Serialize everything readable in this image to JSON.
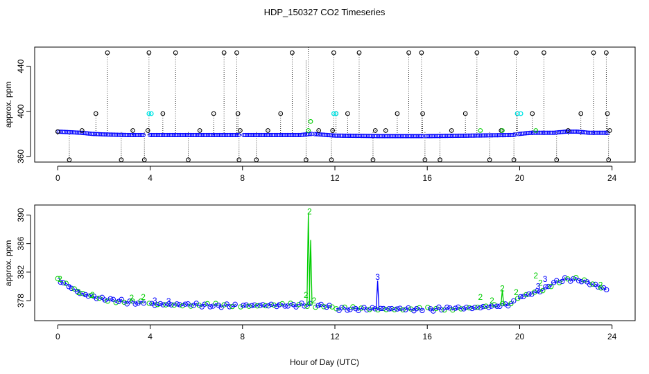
{
  "chart_data": {
    "title": "HDP_150327  CO2 Timeseries",
    "xlabel": "Hour of Day (UTC)",
    "x_ticks": [
      0,
      4,
      8,
      12,
      16,
      20,
      24
    ],
    "panels": [
      {
        "id": "top",
        "type": "scatter",
        "ylabel": "approx. ppm",
        "xlim": [
          -1,
          25
        ],
        "ylim": [
          355,
          457
        ],
        "y_ticks": [
          360,
          400,
          440
        ],
        "x_ticks": [
          0,
          4,
          8,
          12,
          16,
          20,
          24
        ],
        "baseline": [
          [
            0,
            382
          ],
          [
            0.5,
            381.5
          ],
          [
            1,
            381
          ],
          [
            1.5,
            380
          ],
          [
            2,
            379.5
          ],
          [
            3,
            379
          ],
          [
            3.9,
            379
          ],
          [
            4,
            379
          ],
          [
            6,
            379
          ],
          [
            8,
            379
          ],
          [
            10,
            379
          ],
          [
            10.5,
            379
          ],
          [
            11,
            380
          ],
          [
            12,
            378.5
          ],
          [
            14,
            378
          ],
          [
            16,
            378
          ],
          [
            18,
            378.5
          ],
          [
            19.7,
            379
          ],
          [
            20,
            380
          ],
          [
            20.5,
            381
          ],
          [
            21,
            381
          ],
          [
            21.5,
            381
          ],
          [
            22,
            382
          ],
          [
            22.5,
            382
          ],
          [
            23,
            381
          ],
          [
            23.8,
            381
          ]
        ],
        "gaps": [
          [
            3.75,
            3.95
          ],
          [
            7.9,
            8.0
          ],
          [
            11.0,
            11.1
          ],
          [
            15.85,
            15.95
          ],
          [
            19.85,
            19.95
          ]
        ],
        "outlier_marks": [
          {
            "x": 0,
            "y": 382,
            "top": 382
          },
          {
            "x": 0.5,
            "y": 357,
            "top": 382
          },
          {
            "x": 1.05,
            "y": 383,
            "top": 383
          },
          {
            "x": 1.65,
            "y": 398,
            "top": 398
          },
          {
            "x": 2.15,
            "y": 452,
            "top": 452
          },
          {
            "x": 2.75,
            "y": 357,
            "top": 382
          },
          {
            "x": 3.25,
            "y": 383,
            "top": 383
          },
          {
            "x": 3.75,
            "y": 357,
            "top": 382
          },
          {
            "x": 3.95,
            "y": 452,
            "top": 452
          },
          {
            "x": 3.9,
            "y": 383,
            "top": 383
          },
          {
            "x": 4.55,
            "y": 398,
            "top": 398
          },
          {
            "x": 5.1,
            "y": 452,
            "top": 452
          },
          {
            "x": 5.65,
            "y": 357,
            "top": 382
          },
          {
            "x": 6.15,
            "y": 383,
            "top": 383
          },
          {
            "x": 6.75,
            "y": 398,
            "top": 398
          },
          {
            "x": 7.2,
            "y": 452,
            "top": 452
          },
          {
            "x": 7.75,
            "y": 452,
            "top": 452
          },
          {
            "x": 7.8,
            "y": 398,
            "top": 398
          },
          {
            "x": 7.85,
            "y": 357,
            "top": 382
          },
          {
            "x": 7.9,
            "y": 383,
            "top": 383
          },
          {
            "x": 8.6,
            "y": 357,
            "top": 382
          },
          {
            "x": 9.1,
            "y": 383,
            "top": 383
          },
          {
            "x": 9.65,
            "y": 398,
            "top": 398
          },
          {
            "x": 10.15,
            "y": 452,
            "top": 452
          },
          {
            "x": 10.75,
            "y": 357,
            "top": 382
          },
          {
            "x": 11.3,
            "y": 383,
            "top": 383
          },
          {
            "x": 11.85,
            "y": 357,
            "top": 382
          },
          {
            "x": 11.9,
            "y": 383,
            "top": 383
          },
          {
            "x": 11.95,
            "y": 452,
            "top": 452
          },
          {
            "x": 12.05,
            "y": 398,
            "top": 398
          },
          {
            "x": 12.55,
            "y": 398,
            "top": 398
          },
          {
            "x": 13.05,
            "y": 452,
            "top": 452
          },
          {
            "x": 13.65,
            "y": 357,
            "top": 382
          },
          {
            "x": 13.75,
            "y": 383,
            "top": 383
          },
          {
            "x": 14.2,
            "y": 383,
            "top": 383
          },
          {
            "x": 14.7,
            "y": 398,
            "top": 398
          },
          {
            "x": 15.2,
            "y": 452,
            "top": 452
          },
          {
            "x": 15.75,
            "y": 452,
            "top": 452
          },
          {
            "x": 15.8,
            "y": 398,
            "top": 398
          },
          {
            "x": 15.9,
            "y": 357,
            "top": 382
          },
          {
            "x": 16.55,
            "y": 357,
            "top": 382
          },
          {
            "x": 17.05,
            "y": 383,
            "top": 383
          },
          {
            "x": 17.65,
            "y": 398,
            "top": 398
          },
          {
            "x": 18.15,
            "y": 452,
            "top": 452
          },
          {
            "x": 18.7,
            "y": 357,
            "top": 382
          },
          {
            "x": 19.2,
            "y": 383,
            "top": 383
          },
          {
            "x": 19.75,
            "y": 357,
            "top": 382
          },
          {
            "x": 19.85,
            "y": 452,
            "top": 452
          },
          {
            "x": 19.9,
            "y": 398,
            "top": 398
          },
          {
            "x": 20.55,
            "y": 398,
            "top": 398
          },
          {
            "x": 21.05,
            "y": 452,
            "top": 452
          },
          {
            "x": 21.6,
            "y": 357,
            "top": 382
          },
          {
            "x": 22.1,
            "y": 383,
            "top": 383
          },
          {
            "x": 22.65,
            "y": 398,
            "top": 398
          },
          {
            "x": 23.2,
            "y": 452,
            "top": 452
          },
          {
            "x": 23.75,
            "y": 452,
            "top": 452
          },
          {
            "x": 23.8,
            "y": 398,
            "top": 398
          },
          {
            "x": 23.85,
            "y": 357,
            "top": 382
          },
          {
            "x": 23.9,
            "y": 383,
            "top": 383
          }
        ],
        "cyan_marks": [
          {
            "x": 3.95,
            "y": 398
          },
          {
            "x": 4.05,
            "y": 398
          },
          {
            "x": 11.95,
            "y": 398
          },
          {
            "x": 12.05,
            "y": 398
          },
          {
            "x": 19.9,
            "y": 398
          },
          {
            "x": 20.05,
            "y": 398
          }
        ],
        "green_marks": [
          {
            "x": 10.95,
            "y": 391
          },
          {
            "x": 10.85,
            "y": 383
          },
          {
            "x": 18.3,
            "y": 383
          },
          {
            "x": 19.25,
            "y": 383
          },
          {
            "x": 20.7,
            "y": 383
          }
        ],
        "tall_lines": [
          {
            "x": 10.85,
            "from": 380,
            "to": 457
          },
          {
            "x": 10.75,
            "from": 380,
            "to": 445
          }
        ]
      },
      {
        "id": "bottom",
        "type": "scatter",
        "ylabel": "approx. ppm",
        "xlim": [
          -1,
          25
        ],
        "ylim": [
          375.2,
          391.4
        ],
        "y_ticks": [
          378,
          382,
          386,
          390
        ],
        "x_ticks": [
          0,
          4,
          8,
          12,
          16,
          20,
          24
        ],
        "series_profile": [
          [
            0,
            381
          ],
          [
            0.5,
            380
          ],
          [
            1,
            379
          ],
          [
            1.5,
            378.6
          ],
          [
            2,
            378.2
          ],
          [
            2.5,
            378
          ],
          [
            3,
            377.8
          ],
          [
            3.7,
            377.7
          ],
          [
            4,
            377.5
          ],
          [
            6,
            377.4
          ],
          [
            7.7,
            377.3
          ],
          [
            8,
            377.3
          ],
          [
            10,
            377.4
          ],
          [
            10.8,
            377.4
          ],
          [
            11.8,
            377.2
          ],
          [
            12,
            376.9
          ],
          [
            15.8,
            376.8
          ],
          [
            16,
            376.8
          ],
          [
            18,
            377
          ],
          [
            19,
            377.3
          ],
          [
            19.7,
            377.6
          ],
          [
            20,
            378.5
          ],
          [
            20.5,
            379
          ],
          [
            21,
            379.5
          ],
          [
            21.5,
            380.5
          ],
          [
            22,
            381
          ],
          [
            22.5,
            381
          ],
          [
            23,
            380.5
          ],
          [
            23.8,
            379.5
          ]
        ],
        "segment_breaks": [
          3.85,
          7.85,
          11.05,
          11.95,
          15.95,
          19.85
        ],
        "label_marks": [
          {
            "label": "2",
            "x": 0.1,
            "y": 381
          },
          {
            "label": "2",
            "x": 0.9,
            "y": 379.2
          },
          {
            "label": "2",
            "x": 1.5,
            "y": 378.8
          },
          {
            "label": "2",
            "x": 3.2,
            "y": 378.4
          },
          {
            "label": "2",
            "x": 3.7,
            "y": 378.5
          },
          {
            "label": "3",
            "x": 4.2,
            "y": 378
          },
          {
            "label": "3",
            "x": 4.8,
            "y": 377.9
          },
          {
            "label": "2",
            "x": 10.9,
            "y": 390.5
          },
          {
            "label": "2",
            "x": 10.75,
            "y": 378.8
          },
          {
            "label": "2",
            "x": 11.1,
            "y": 378
          },
          {
            "label": "3",
            "x": 13.85,
            "y": 381.3
          },
          {
            "label": "2",
            "x": 18.3,
            "y": 378.5
          },
          {
            "label": "2",
            "x": 18.8,
            "y": 378
          },
          {
            "label": "2",
            "x": 19.25,
            "y": 379.7
          },
          {
            "label": "2",
            "x": 19.85,
            "y": 379.2
          },
          {
            "label": "2",
            "x": 20.7,
            "y": 381.5
          },
          {
            "label": "2",
            "x": 20.9,
            "y": 380.5
          },
          {
            "label": "3",
            "x": 21.1,
            "y": 381
          },
          {
            "label": "3",
            "x": 20.8,
            "y": 380
          },
          {
            "label": "2",
            "x": 23.5,
            "y": 380.2
          }
        ],
        "spikes": [
          {
            "x": 10.85,
            "y": 390.3,
            "color": "green"
          },
          {
            "x": 10.95,
            "y": 386.5,
            "color": "green"
          },
          {
            "x": 13.85,
            "y": 380.8,
            "color": "blue"
          },
          {
            "x": 19.25,
            "y": 379.5,
            "color": "green"
          }
        ]
      }
    ],
    "colors": {
      "blue": "#0000ff",
      "green": "#00cd00",
      "cyan": "#00e5e5",
      "black": "#000000"
    }
  }
}
